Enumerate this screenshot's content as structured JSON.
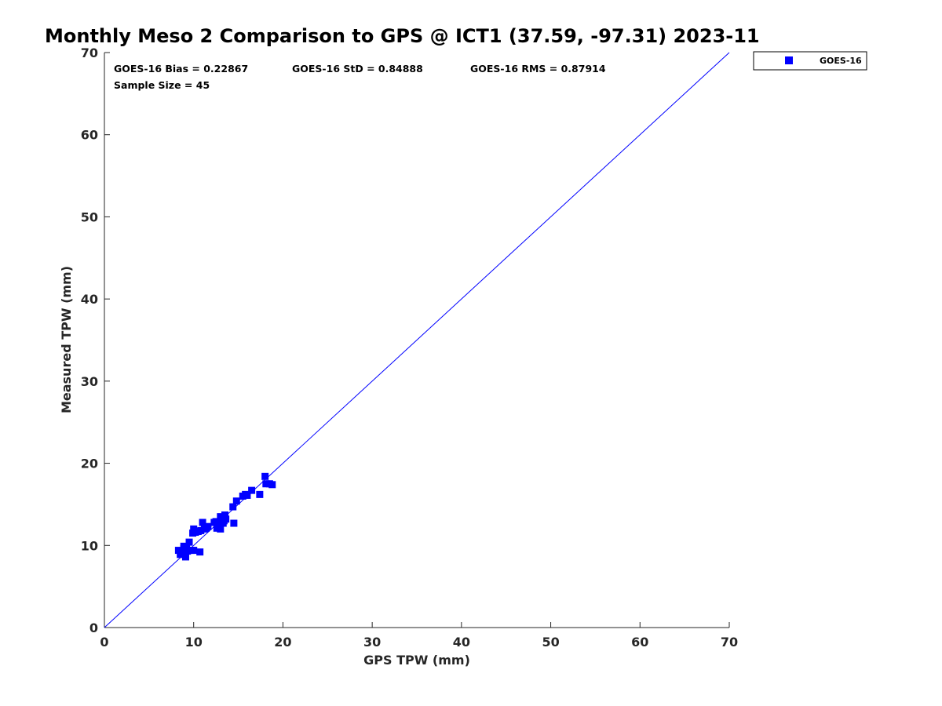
{
  "chart_data": {
    "type": "scatter",
    "title": "Monthly Meso 2 Comparison to GPS @ ICT1 (37.59, -97.31) 2023-11",
    "xlabel": "GPS TPW (mm)",
    "ylabel": "Measured TPW (mm)",
    "xlim": [
      0,
      70
    ],
    "ylim": [
      0,
      70
    ],
    "xticks": [
      "0",
      "10",
      "20",
      "30",
      "40",
      "50",
      "60",
      "70"
    ],
    "yticks": [
      "0",
      "10",
      "20",
      "30",
      "40",
      "50",
      "60",
      "70"
    ],
    "grid": false,
    "legend_position": "top-right outside",
    "stats": {
      "bias": "GOES-16 Bias = 0.22867",
      "std": "GOES-16 StD = 0.84888",
      "rms": "GOES-16 RMS = 0.87914",
      "sample_size": "Sample Size = 45"
    },
    "reference_line": {
      "x": [
        0,
        70
      ],
      "y": [
        0,
        70
      ],
      "color": "#0000ff"
    },
    "series": [
      {
        "name": "GOES-16",
        "color": "#0000ff",
        "marker": "square",
        "points": [
          [
            8.3,
            9.4
          ],
          [
            8.5,
            8.9
          ],
          [
            8.7,
            9.2
          ],
          [
            8.9,
            9.6
          ],
          [
            9.0,
            9.0
          ],
          [
            9.1,
            8.6
          ],
          [
            9.2,
            9.8
          ],
          [
            9.3,
            9.3
          ],
          [
            9.5,
            10.4
          ],
          [
            9.7,
            9.4
          ],
          [
            10.0,
            9.4
          ],
          [
            9.9,
            11.5
          ],
          [
            10.0,
            12.0
          ],
          [
            10.2,
            11.6
          ],
          [
            10.5,
            11.7
          ],
          [
            10.7,
            9.2
          ],
          [
            10.8,
            11.8
          ],
          [
            11.0,
            12.8
          ],
          [
            11.2,
            12.0
          ],
          [
            11.6,
            12.3
          ],
          [
            12.3,
            12.8
          ],
          [
            12.6,
            12.1
          ],
          [
            12.8,
            12.6
          ],
          [
            13.0,
            13.5
          ],
          [
            13.0,
            12.0
          ],
          [
            13.2,
            13.3
          ],
          [
            13.3,
            12.7
          ],
          [
            13.4,
            13.0
          ],
          [
            13.5,
            13.7
          ],
          [
            13.6,
            13.2
          ],
          [
            14.4,
            14.7
          ],
          [
            14.5,
            12.7
          ],
          [
            14.8,
            15.4
          ],
          [
            15.5,
            16.0
          ],
          [
            15.8,
            16.2
          ],
          [
            16.0,
            16.1
          ],
          [
            16.5,
            16.7
          ],
          [
            17.4,
            16.2
          ],
          [
            18.0,
            18.4
          ],
          [
            18.1,
            17.5
          ],
          [
            18.5,
            17.5
          ],
          [
            18.8,
            17.4
          ],
          [
            12.5,
            12.9
          ],
          [
            11.4,
            12.1
          ],
          [
            8.9,
            9.9
          ]
        ]
      }
    ]
  }
}
